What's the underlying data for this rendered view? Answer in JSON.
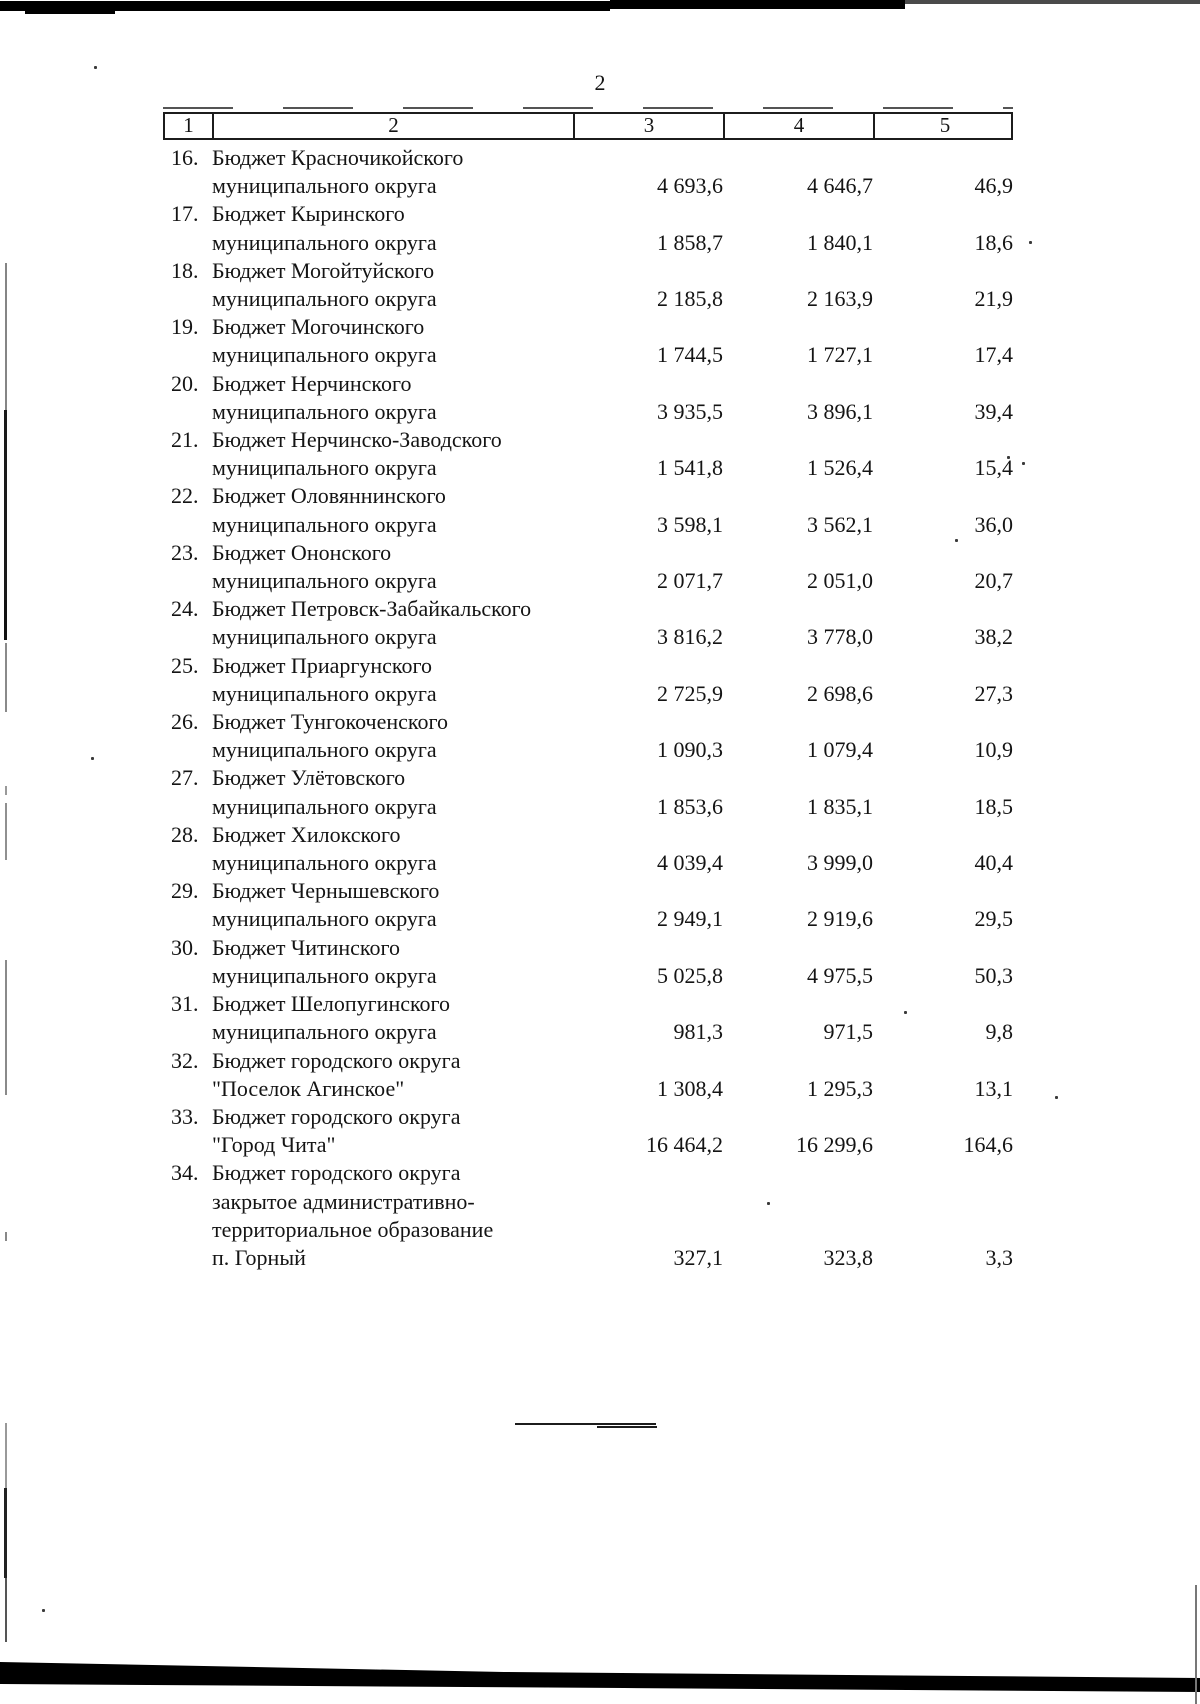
{
  "page": {
    "number": "2"
  },
  "table": {
    "header": {
      "columns": [
        "1",
        "2",
        "3",
        "4",
        "5"
      ]
    },
    "rows": [
      {
        "num": "16.",
        "name_lines": [
          "Бюджет Красночикойского",
          "муниципального округа"
        ],
        "col3": "4 693,6",
        "col4": "4 646,7",
        "col5": "46,9"
      },
      {
        "num": "17.",
        "name_lines": [
          "Бюджет Кыринского",
          "муниципального округа"
        ],
        "col3": "1 858,7",
        "col4": "1 840,1",
        "col5": "18,6"
      },
      {
        "num": "18.",
        "name_lines": [
          "Бюджет Могойтуйского",
          "муниципального округа"
        ],
        "col3": "2 185,8",
        "col4": "2 163,9",
        "col5": "21,9"
      },
      {
        "num": "19.",
        "name_lines": [
          "Бюджет Могочинского",
          "муниципального округа"
        ],
        "col3": "1 744,5",
        "col4": "1 727,1",
        "col5": "17,4"
      },
      {
        "num": "20.",
        "name_lines": [
          "Бюджет Нерчинского",
          "муниципального округа"
        ],
        "col3": "3 935,5",
        "col4": "3 896,1",
        "col5": "39,4"
      },
      {
        "num": "21.",
        "name_lines": [
          "Бюджет Нерчинско-Заводского",
          "муниципального округа"
        ],
        "col3": "1 541,8",
        "col4": "1 526,4",
        "col5": "15,4"
      },
      {
        "num": "22.",
        "name_lines": [
          "Бюджет Оловяннинского",
          "муниципального округа"
        ],
        "col3": "3 598,1",
        "col4": "3 562,1",
        "col5": "36,0"
      },
      {
        "num": "23.",
        "name_lines": [
          "Бюджет Ононского",
          "муниципального округа"
        ],
        "col3": "2 071,7",
        "col4": "2 051,0",
        "col5": "20,7"
      },
      {
        "num": "24.",
        "name_lines": [
          "Бюджет Петровск-Забайкальского",
          "муниципального округа"
        ],
        "col3": "3 816,2",
        "col4": "3 778,0",
        "col5": "38,2"
      },
      {
        "num": "25.",
        "name_lines": [
          "Бюджет Приаргунского",
          "муниципального округа"
        ],
        "col3": "2 725,9",
        "col4": "2 698,6",
        "col5": "27,3"
      },
      {
        "num": "26.",
        "name_lines": [
          "Бюджет Тунгокоченского",
          "муниципального округа"
        ],
        "col3": "1 090,3",
        "col4": "1 079,4",
        "col5": "10,9"
      },
      {
        "num": "27.",
        "name_lines": [
          "Бюджет Улётовского",
          "муниципального округа"
        ],
        "col3": "1 853,6",
        "col4": "1 835,1",
        "col5": "18,5"
      },
      {
        "num": "28.",
        "name_lines": [
          "Бюджет Хилокского",
          "муниципального округа"
        ],
        "col3": "4 039,4",
        "col4": "3 999,0",
        "col5": "40,4"
      },
      {
        "num": "29.",
        "name_lines": [
          "Бюджет Чернышевского",
          "муниципального округа"
        ],
        "col3": "2 949,1",
        "col4": "2 919,6",
        "col5": "29,5"
      },
      {
        "num": "30.",
        "name_lines": [
          "Бюджет Читинского",
          "муниципального округа"
        ],
        "col3": "5 025,8",
        "col4": "4 975,5",
        "col5": "50,3"
      },
      {
        "num": "31.",
        "name_lines": [
          "Бюджет Шелопугинского",
          "муниципального округа"
        ],
        "col3": "981,3",
        "col4": "971,5",
        "col5": "9,8"
      },
      {
        "num": "32.",
        "name_lines": [
          "Бюджет городского округа",
          "\"Поселок Агинское\""
        ],
        "col3": "1 308,4",
        "col4": "1 295,3",
        "col5": "13,1"
      },
      {
        "num": "33.",
        "name_lines": [
          "Бюджет городского округа",
          "\"Город Чита\""
        ],
        "col3": "16 464,2",
        "col4": "16 299,6",
        "col5": "164,6"
      },
      {
        "num": "34.",
        "name_lines": [
          "Бюджет городского округа",
          "закрытое административно-",
          "территориальное образование",
          "п. Горный"
        ],
        "col3": "327,1",
        "col4": "323,8",
        "col5": "3,3"
      }
    ]
  }
}
